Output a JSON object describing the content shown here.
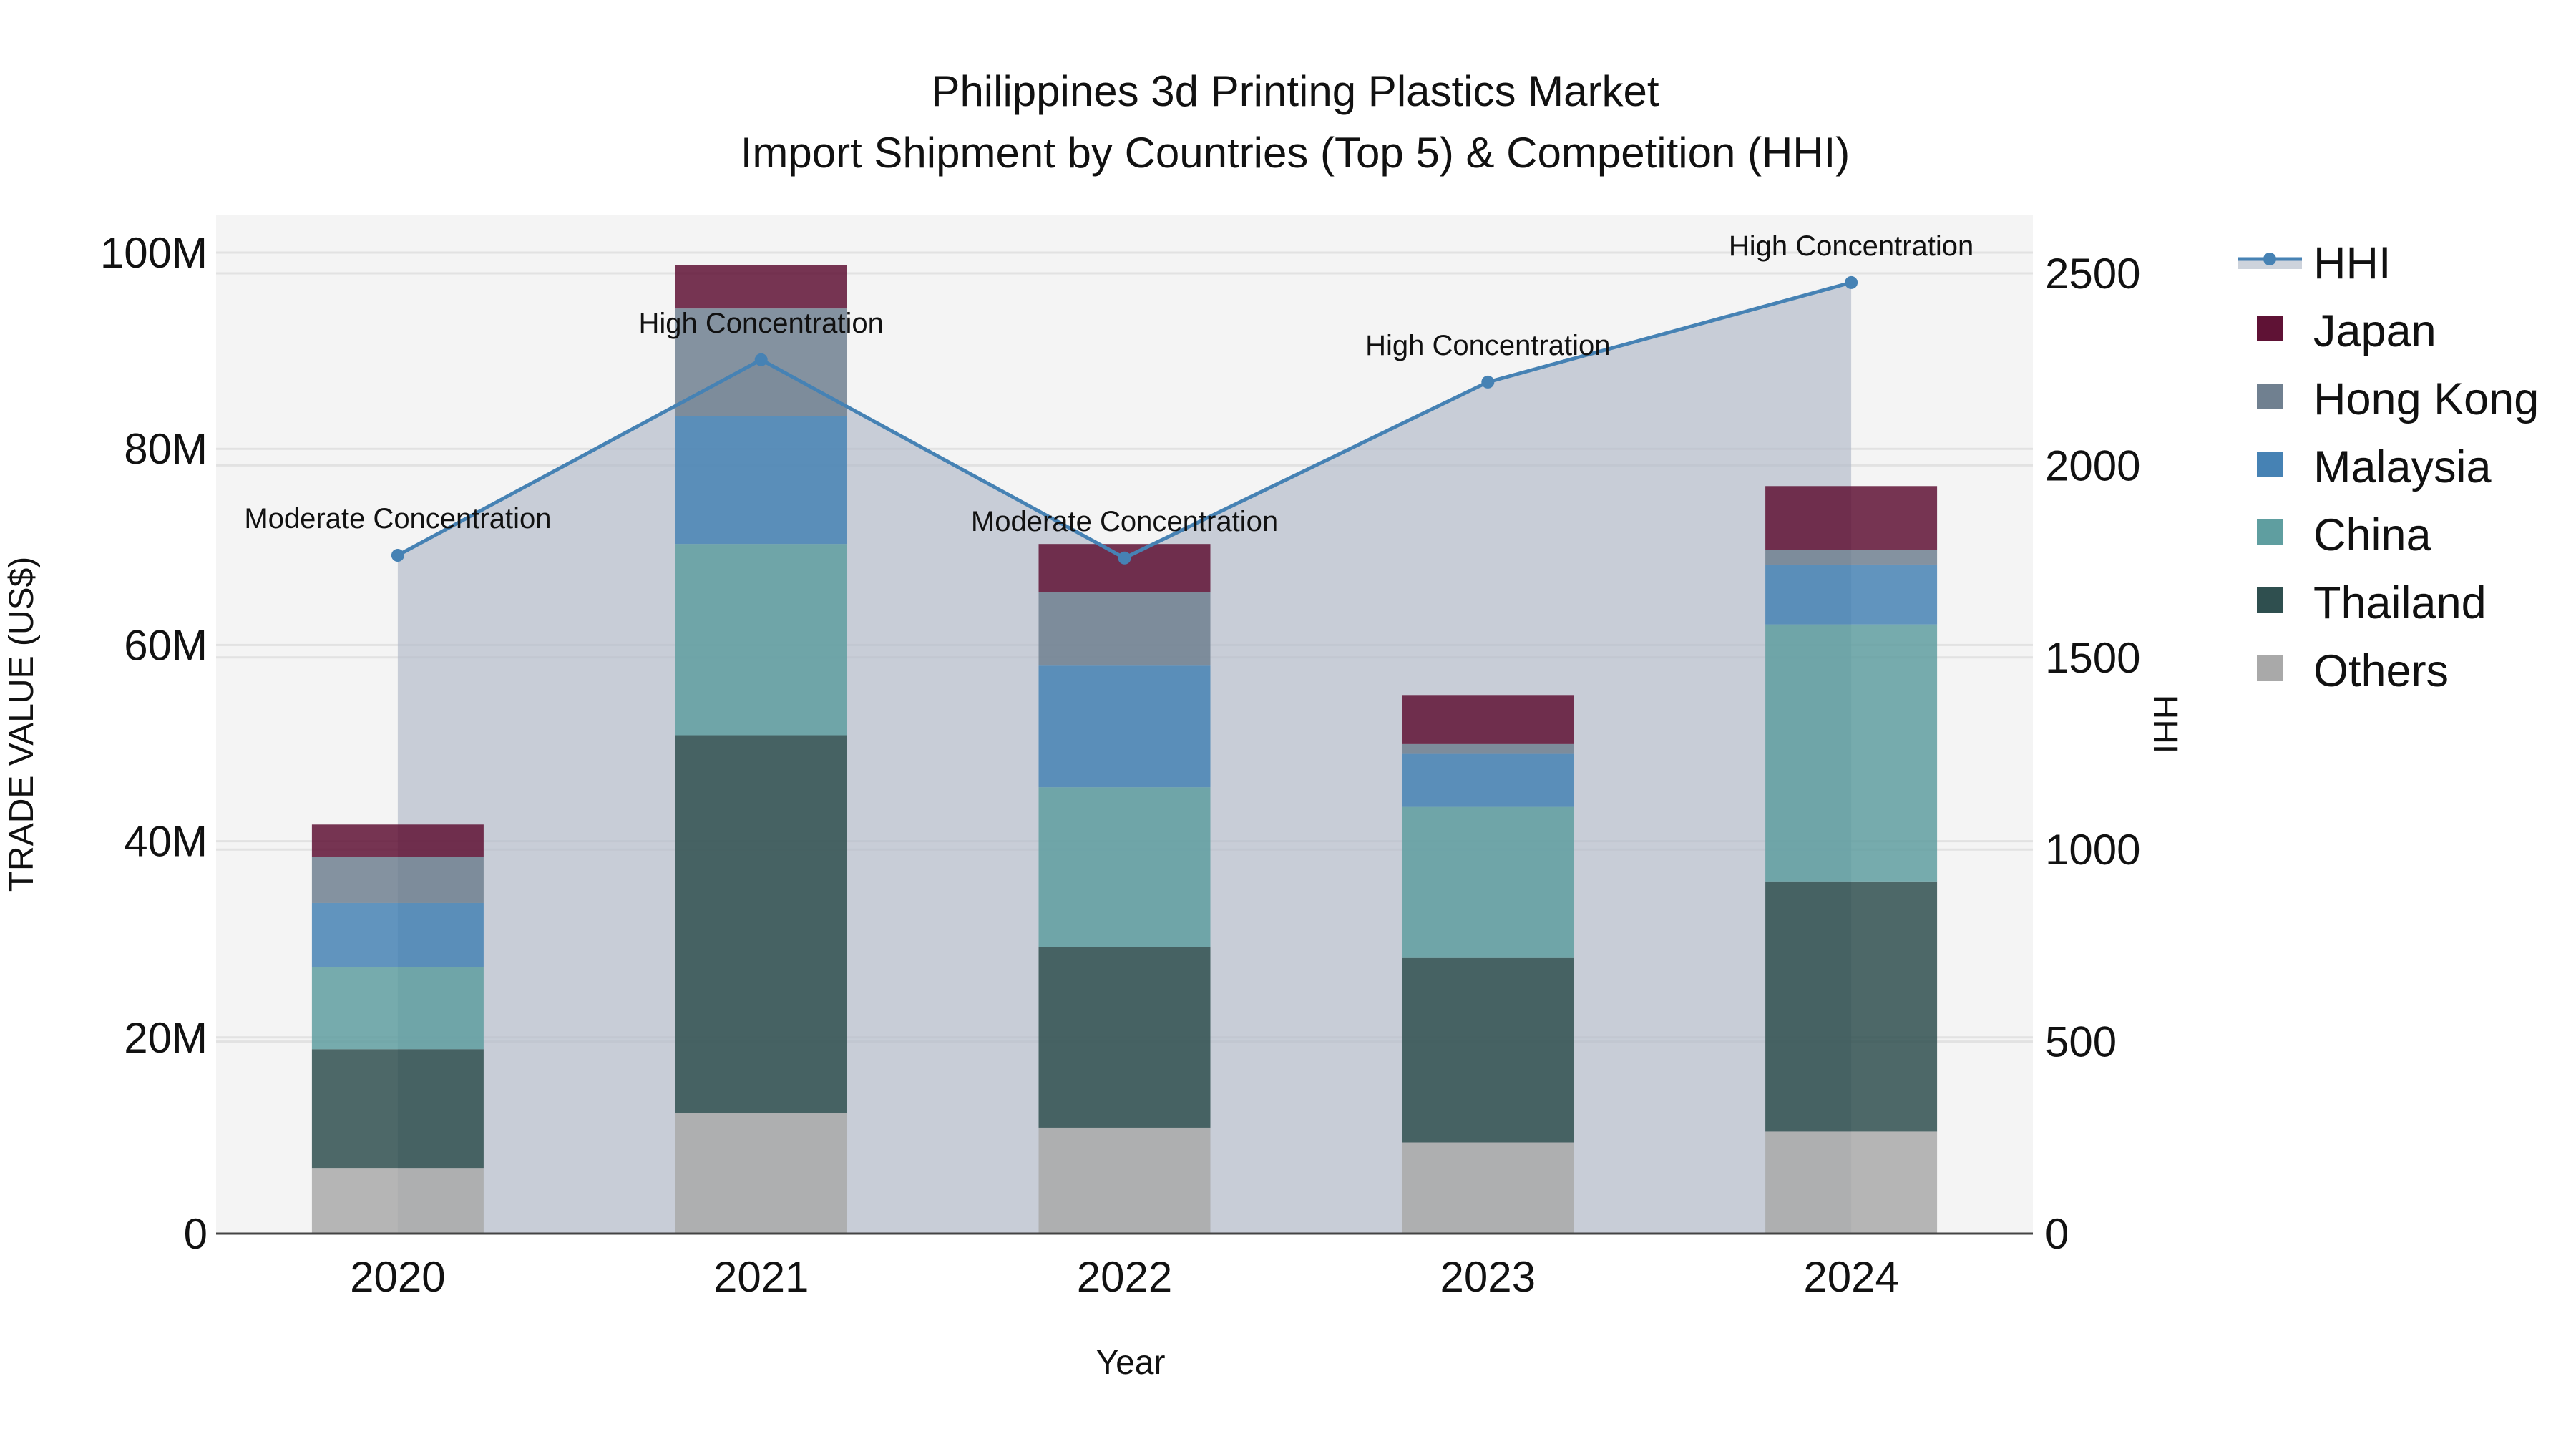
{
  "title": {
    "line1": "Philippines 3d Printing Plastics Market",
    "line2": "Import Shipment by Countries (Top 5) & Competition (HHI)"
  },
  "axes": {
    "x_title": "Year",
    "y_left_title": "TRADE VALUE (US$)",
    "y_right_title": "HHI",
    "y_left_ticks": [
      "0",
      "20M",
      "40M",
      "60M",
      "80M",
      "100M"
    ],
    "y_right_ticks": [
      "0",
      "500",
      "1000",
      "1500",
      "2000",
      "2500"
    ]
  },
  "legend": {
    "items": [
      {
        "label": "HHI",
        "type": "line",
        "color": "#4682b4"
      },
      {
        "label": "Japan",
        "type": "box",
        "color": "#5f1235"
      },
      {
        "label": "Hong Kong",
        "type": "box",
        "color": "#708090"
      },
      {
        "label": "Malaysia",
        "type": "box",
        "color": "#4682b4"
      },
      {
        "label": "China",
        "type": "box",
        "color": "#5f9ea0"
      },
      {
        "label": "Thailand",
        "type": "box",
        "color": "#2f4f4f"
      },
      {
        "label": "Others",
        "type": "box",
        "color": "#a9a9a9"
      }
    ]
  },
  "chart_data": {
    "type": "bar",
    "stacked": true,
    "title": "Philippines 3d Printing Plastics Market — Import Shipment by Countries (Top 5) & Competition (HHI)",
    "xlabel": "Year",
    "ylabel": "TRADE VALUE (US$)",
    "y2label": "HHI",
    "categories": [
      "2020",
      "2021",
      "2022",
      "2023",
      "2024"
    ],
    "ylim": [
      0,
      104000000
    ],
    "y2lim": [
      0,
      2650
    ],
    "grid": true,
    "legend_position": "right",
    "series": [
      {
        "name": "Others",
        "color": "#a9a9a9",
        "values": [
          6700000,
          12300000,
          10800000,
          9300000,
          10400000
        ]
      },
      {
        "name": "Thailand",
        "color": "#2f4f4f",
        "values": [
          12100000,
          38500000,
          18400000,
          18800000,
          25500000
        ]
      },
      {
        "name": "China",
        "color": "#5f9ea0",
        "values": [
          8400000,
          19500000,
          16300000,
          15400000,
          26200000
        ]
      },
      {
        "name": "Malaysia",
        "color": "#4682b4",
        "values": [
          6500000,
          13000000,
          12400000,
          5400000,
          6100000
        ]
      },
      {
        "name": "Hong Kong",
        "color": "#708090",
        "values": [
          4700000,
          11000000,
          7500000,
          1000000,
          1500000
        ]
      },
      {
        "name": "Japan",
        "color": "#5f1235",
        "values": [
          3300000,
          4400000,
          4900000,
          5000000,
          6500000
        ]
      }
    ],
    "line_series": {
      "name": "HHI",
      "axis": "right",
      "color": "#4682b4",
      "fill": "tozeroy",
      "values": [
        1766,
        2275,
        1759,
        2217,
        2476
      ],
      "annotations": [
        "Moderate Concentration",
        "High Concentration",
        "Moderate Concentration",
        "High Concentration",
        "High Concentration"
      ]
    }
  }
}
